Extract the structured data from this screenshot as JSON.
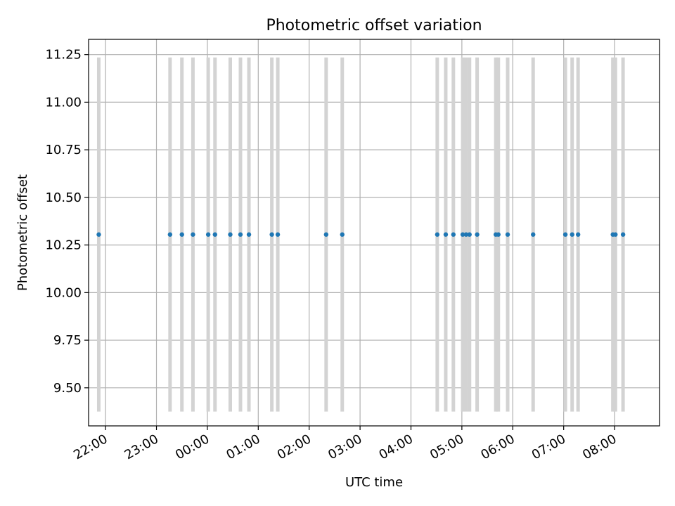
{
  "chart_data": {
    "type": "scatter",
    "title": "Photometric offset variation",
    "xlabel": "UTC time",
    "ylabel": "Photometric offset",
    "xlim": [
      "21:40",
      "08:53"
    ],
    "ylim": [
      9.3,
      11.33
    ],
    "grid": true,
    "x_ticks": [
      "22:00",
      "23:00",
      "00:00",
      "01:00",
      "02:00",
      "03:00",
      "04:00",
      "05:00",
      "06:00",
      "07:00",
      "08:00"
    ],
    "y_ticks": [
      "9.50",
      "9.75",
      "10.00",
      "10.25",
      "10.50",
      "10.75",
      "11.00",
      "11.25"
    ],
    "points": {
      "y": 10.305,
      "x": [
        "21:52",
        "23:16",
        "23:30",
        "23:43",
        "00:01",
        "00:09",
        "00:27",
        "00:39",
        "00:49",
        "01:16",
        "01:23",
        "02:20",
        "02:39",
        "04:31",
        "04:41",
        "04:50",
        "05:01",
        "05:05",
        "05:09",
        "05:18",
        "05:40",
        "05:43",
        "05:54",
        "06:24",
        "07:02",
        "07:10",
        "07:17",
        "07:58",
        "08:01",
        "08:10"
      ]
    },
    "error_bars": {
      "low": 9.375,
      "high": 11.235,
      "color": "#d3d3d3"
    },
    "marker_color": "#1f77b4",
    "grid_color": "#b0b0b0"
  }
}
